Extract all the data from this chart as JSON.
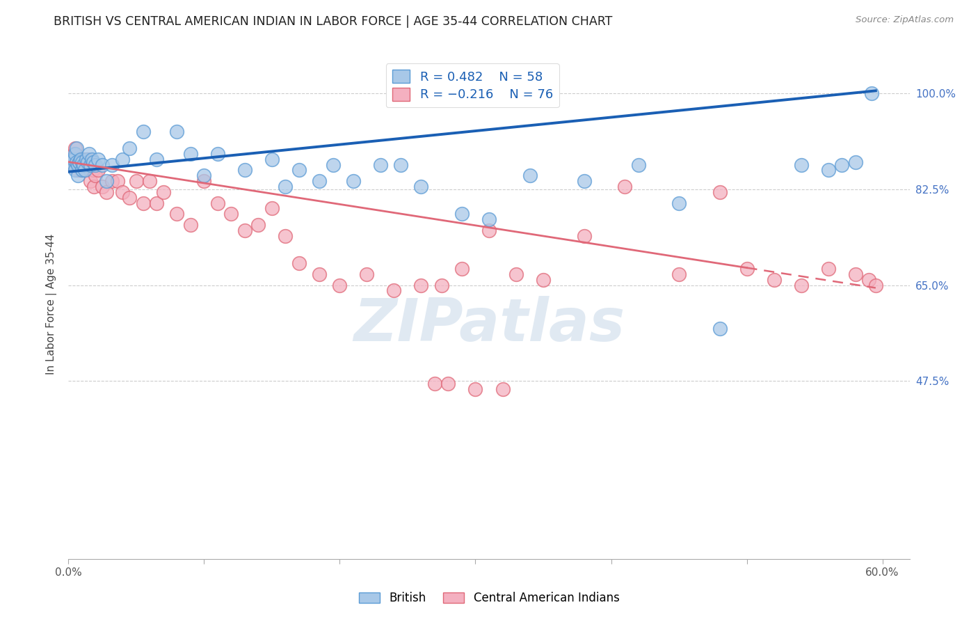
{
  "title": "BRITISH VS CENTRAL AMERICAN INDIAN IN LABOR FORCE | AGE 35-44 CORRELATION CHART",
  "source": "Source: ZipAtlas.com",
  "ylabel": "In Labor Force | Age 35-44",
  "xlim": [
    0.0,
    0.62
  ],
  "ylim": [
    0.15,
    1.08
  ],
  "xticks": [
    0.0,
    0.1,
    0.2,
    0.3,
    0.4,
    0.5,
    0.6
  ],
  "xticklabels": [
    "0.0%",
    "",
    "",
    "",
    "",
    "",
    "60.0%"
  ],
  "ytick_positions": [
    0.475,
    0.65,
    0.825,
    1.0
  ],
  "ytick_labels": [
    "47.5%",
    "65.0%",
    "82.5%",
    "100.0%"
  ],
  "british_color": "#a8c8e8",
  "british_edge": "#5b9bd5",
  "central_color": "#f4b0c0",
  "central_edge": "#e06878",
  "legend_british_r": "R = 0.482",
  "legend_british_n": "N = 58",
  "legend_central_r": "R = -0.216",
  "legend_central_n": "N = 76",
  "trendline_british_color": "#1a5fb4",
  "trendline_central_color": "#e06878",
  "watermark_color": "#c8d8e8",
  "title_fontsize": 13,
  "axis_label_color": "#444444",
  "right_tick_color": "#4472c4",
  "british_x": [
    0.002,
    0.003,
    0.004,
    0.004,
    0.005,
    0.005,
    0.006,
    0.006,
    0.007,
    0.007,
    0.008,
    0.008,
    0.009,
    0.01,
    0.01,
    0.011,
    0.012,
    0.013,
    0.014,
    0.015,
    0.016,
    0.017,
    0.018,
    0.02,
    0.022,
    0.025,
    0.028,
    0.032,
    0.04,
    0.045,
    0.055,
    0.065,
    0.08,
    0.09,
    0.1,
    0.11,
    0.13,
    0.15,
    0.16,
    0.17,
    0.185,
    0.195,
    0.21,
    0.23,
    0.245,
    0.26,
    0.29,
    0.31,
    0.34,
    0.38,
    0.42,
    0.45,
    0.48,
    0.54,
    0.56,
    0.57,
    0.58,
    0.592
  ],
  "british_y": [
    0.875,
    0.88,
    0.87,
    0.88,
    0.89,
    0.86,
    0.875,
    0.9,
    0.85,
    0.87,
    0.875,
    0.875,
    0.88,
    0.86,
    0.875,
    0.87,
    0.86,
    0.88,
    0.875,
    0.89,
    0.87,
    0.88,
    0.875,
    0.87,
    0.88,
    0.87,
    0.84,
    0.87,
    0.88,
    0.9,
    0.93,
    0.88,
    0.93,
    0.89,
    0.85,
    0.89,
    0.86,
    0.88,
    0.83,
    0.86,
    0.84,
    0.87,
    0.84,
    0.87,
    0.87,
    0.83,
    0.78,
    0.77,
    0.85,
    0.84,
    0.87,
    0.8,
    0.57,
    0.87,
    0.86,
    0.87,
    0.875,
    1.0
  ],
  "central_x": [
    0.002,
    0.003,
    0.003,
    0.004,
    0.004,
    0.005,
    0.005,
    0.006,
    0.006,
    0.007,
    0.007,
    0.008,
    0.008,
    0.009,
    0.009,
    0.01,
    0.01,
    0.011,
    0.011,
    0.012,
    0.013,
    0.013,
    0.014,
    0.015,
    0.016,
    0.017,
    0.018,
    0.019,
    0.02,
    0.022,
    0.025,
    0.028,
    0.032,
    0.036,
    0.04,
    0.045,
    0.05,
    0.055,
    0.06,
    0.065,
    0.07,
    0.08,
    0.09,
    0.1,
    0.11,
    0.12,
    0.13,
    0.14,
    0.15,
    0.16,
    0.17,
    0.185,
    0.2,
    0.22,
    0.24,
    0.26,
    0.275,
    0.29,
    0.31,
    0.33,
    0.35,
    0.38,
    0.41,
    0.45,
    0.48,
    0.5,
    0.52,
    0.54,
    0.56,
    0.58,
    0.59,
    0.595,
    0.27,
    0.28,
    0.3,
    0.32
  ],
  "central_y": [
    0.88,
    0.875,
    0.87,
    0.88,
    0.89,
    0.875,
    0.9,
    0.87,
    0.88,
    0.86,
    0.875,
    0.875,
    0.88,
    0.86,
    0.875,
    0.87,
    0.86,
    0.875,
    0.88,
    0.87,
    0.86,
    0.875,
    0.88,
    0.87,
    0.84,
    0.87,
    0.86,
    0.83,
    0.85,
    0.86,
    0.83,
    0.82,
    0.84,
    0.84,
    0.82,
    0.81,
    0.84,
    0.8,
    0.84,
    0.8,
    0.82,
    0.78,
    0.76,
    0.84,
    0.8,
    0.78,
    0.75,
    0.76,
    0.79,
    0.74,
    0.69,
    0.67,
    0.65,
    0.67,
    0.64,
    0.65,
    0.65,
    0.68,
    0.75,
    0.67,
    0.66,
    0.74,
    0.83,
    0.67,
    0.82,
    0.68,
    0.66,
    0.65,
    0.68,
    0.67,
    0.66,
    0.65,
    0.47,
    0.47,
    0.46,
    0.46
  ],
  "brit_trend_x0": 0.0,
  "brit_trend_y0": 0.857,
  "brit_trend_x1": 0.595,
  "brit_trend_y1": 1.005,
  "cent_trend_x0": 0.0,
  "cent_trend_y0": 0.875,
  "cent_trend_x1": 0.595,
  "cent_trend_y1": 0.645
}
